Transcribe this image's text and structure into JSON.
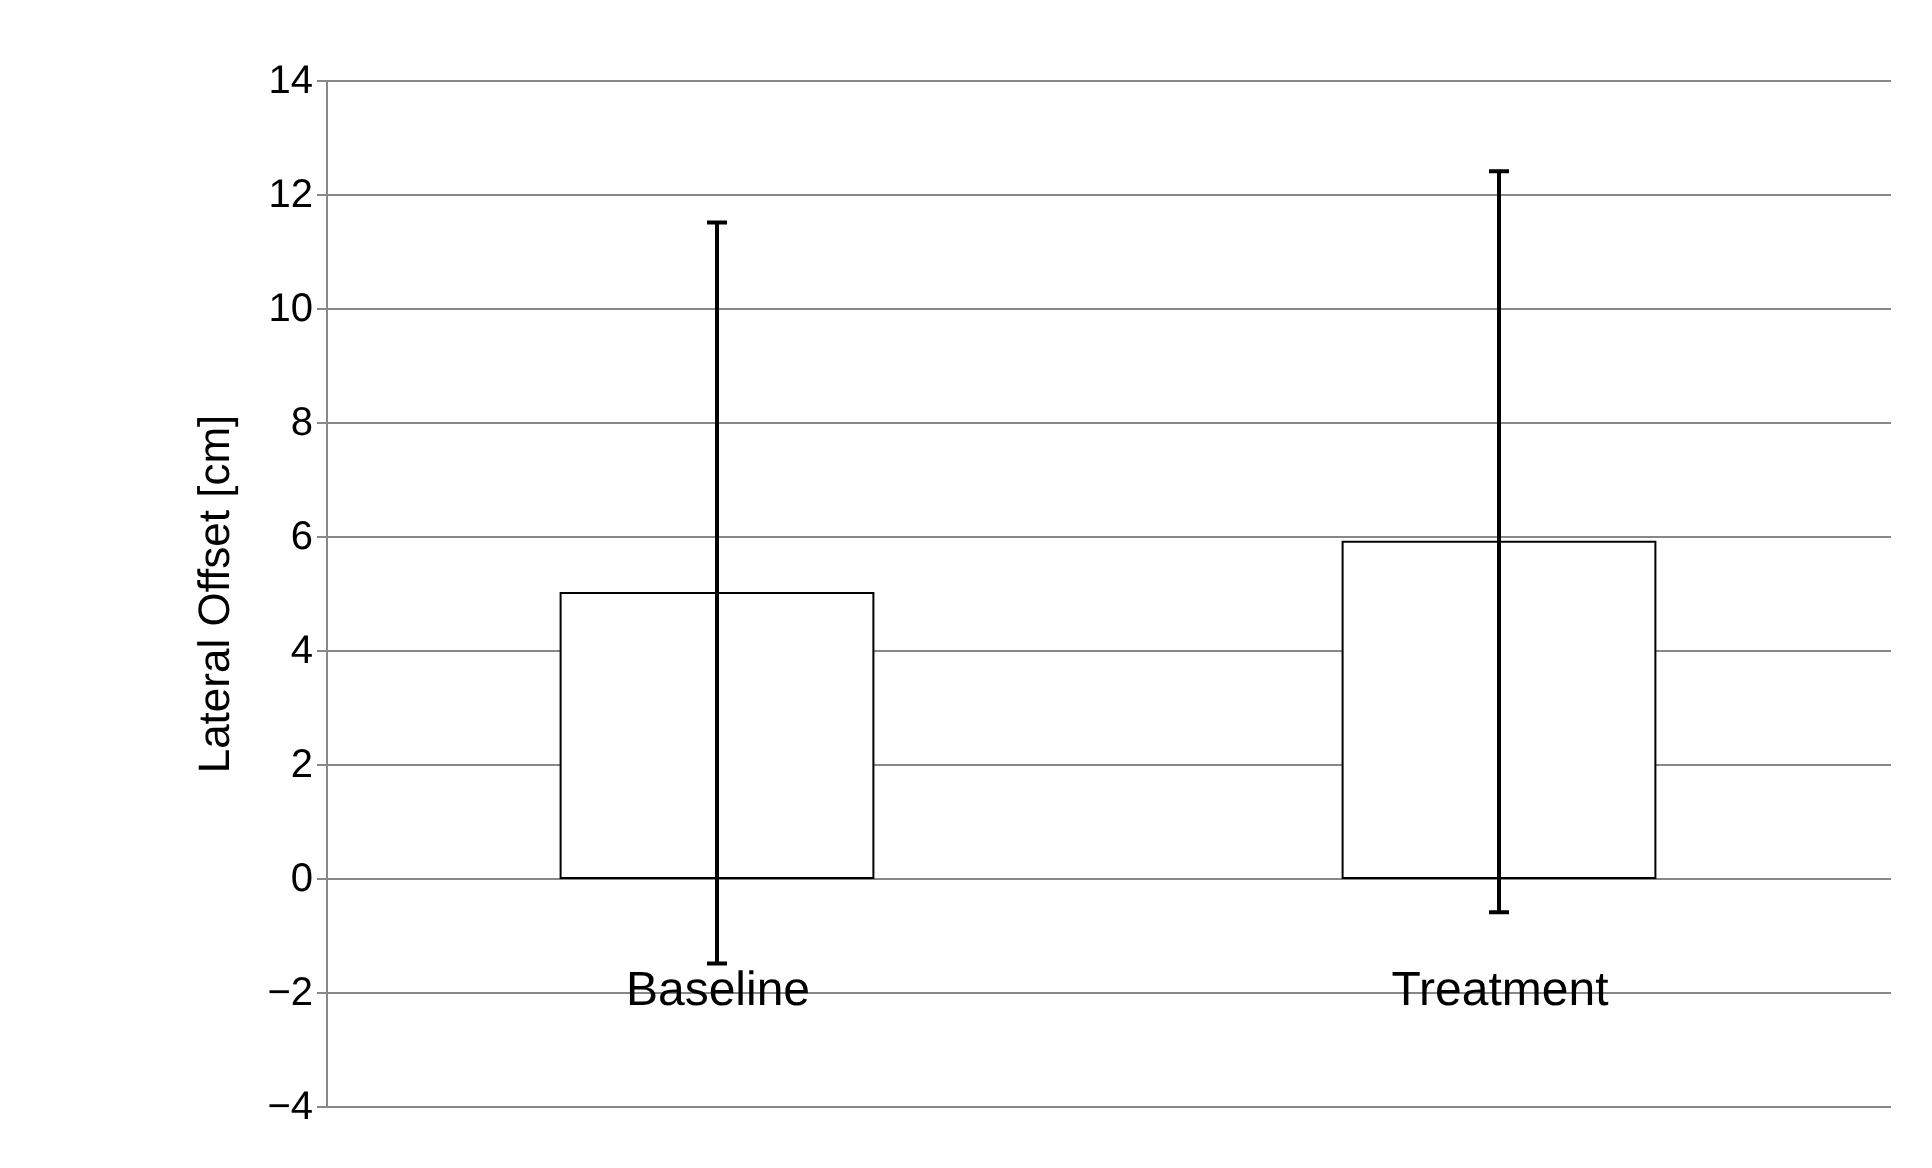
{
  "chart_data": {
    "type": "bar",
    "ylabel": "Lateral Offset [cm]",
    "categories": [
      "Baseline",
      "Treatment"
    ],
    "series": [
      {
        "color": "#ffffff",
        "values": [
          5.0,
          5.9
        ],
        "errors": [
          6.5,
          6.5
        ]
      }
    ],
    "ylim": [
      -4,
      14
    ],
    "yticks": [
      -4,
      -2,
      0,
      2,
      4,
      6,
      8,
      10,
      12,
      14
    ],
    "grid": "y"
  }
}
